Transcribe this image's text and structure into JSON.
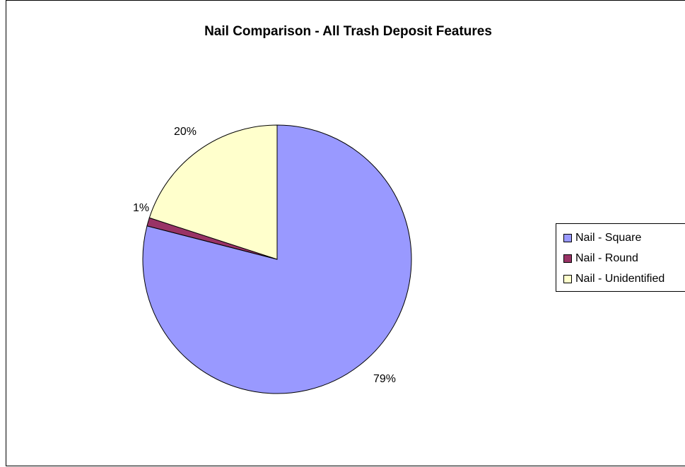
{
  "chart_data": {
    "type": "pie",
    "title": "Nail Comparison - All Trash Deposit Features",
    "categories": [
      "Nail - Square",
      "Nail - Round",
      "Nail - Unidentified"
    ],
    "values": [
      79,
      1,
      20
    ],
    "labels": [
      "79%",
      "1%",
      "20%"
    ],
    "colors": [
      "#9999FF",
      "#993366",
      "#FFFFCC"
    ],
    "legend_position": "right"
  }
}
